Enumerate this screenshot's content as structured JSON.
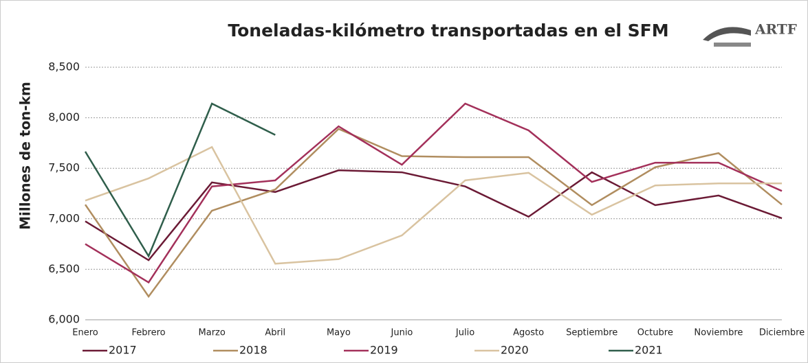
{
  "logo": "ARTF",
  "chart_data": {
    "type": "line",
    "title": "Toneladas-kilómetro transportadas en el SFM",
    "y_label": "Millones de ton-km",
    "categories": [
      "Enero",
      "Febrero",
      "Marzo",
      "Abril",
      "Mayo",
      "Junio",
      "Julio",
      "Agosto",
      "Septiembre",
      "Octubre",
      "Noviembre",
      "Diciembre"
    ],
    "series": [
      {
        "name": "2017",
        "color": "#6b1a35",
        "values": [
          6975,
          6590,
          7360,
          7265,
          7480,
          7460,
          7320,
          7020,
          7460,
          7135,
          7230,
          7005
        ]
      },
      {
        "name": "2018",
        "color": "#b08d5f",
        "values": [
          7140,
          6230,
          7080,
          7290,
          7890,
          7620,
          7610,
          7610,
          7135,
          7510,
          7650,
          7140
        ]
      },
      {
        "name": "2019",
        "color": "#a3305a",
        "values": [
          6750,
          6370,
          7320,
          7380,
          7915,
          7535,
          8140,
          7875,
          7365,
          7555,
          7555,
          7275
        ]
      },
      {
        "name": "2020",
        "color": "#d9c3a0",
        "values": [
          7180,
          7400,
          7710,
          6555,
          6600,
          6835,
          7380,
          7455,
          7040,
          7330,
          7350,
          7350
        ]
      },
      {
        "name": "2021",
        "color": "#2f5e4b",
        "values": [
          7665,
          6630,
          8140,
          7830,
          null,
          null,
          null,
          null,
          null,
          null,
          null,
          null
        ]
      }
    ],
    "ylim": [
      6000,
      8500
    ],
    "yticks": [
      {
        "value": 6000,
        "label": "6,000"
      },
      {
        "value": 6500,
        "label": "6,500"
      },
      {
        "value": 7000,
        "label": "7,000"
      },
      {
        "value": 7500,
        "label": "7,500"
      },
      {
        "value": 8000,
        "label": "8,000"
      },
      {
        "value": 8500,
        "label": "8,500"
      }
    ],
    "grid": true,
    "legend": "bottom"
  }
}
